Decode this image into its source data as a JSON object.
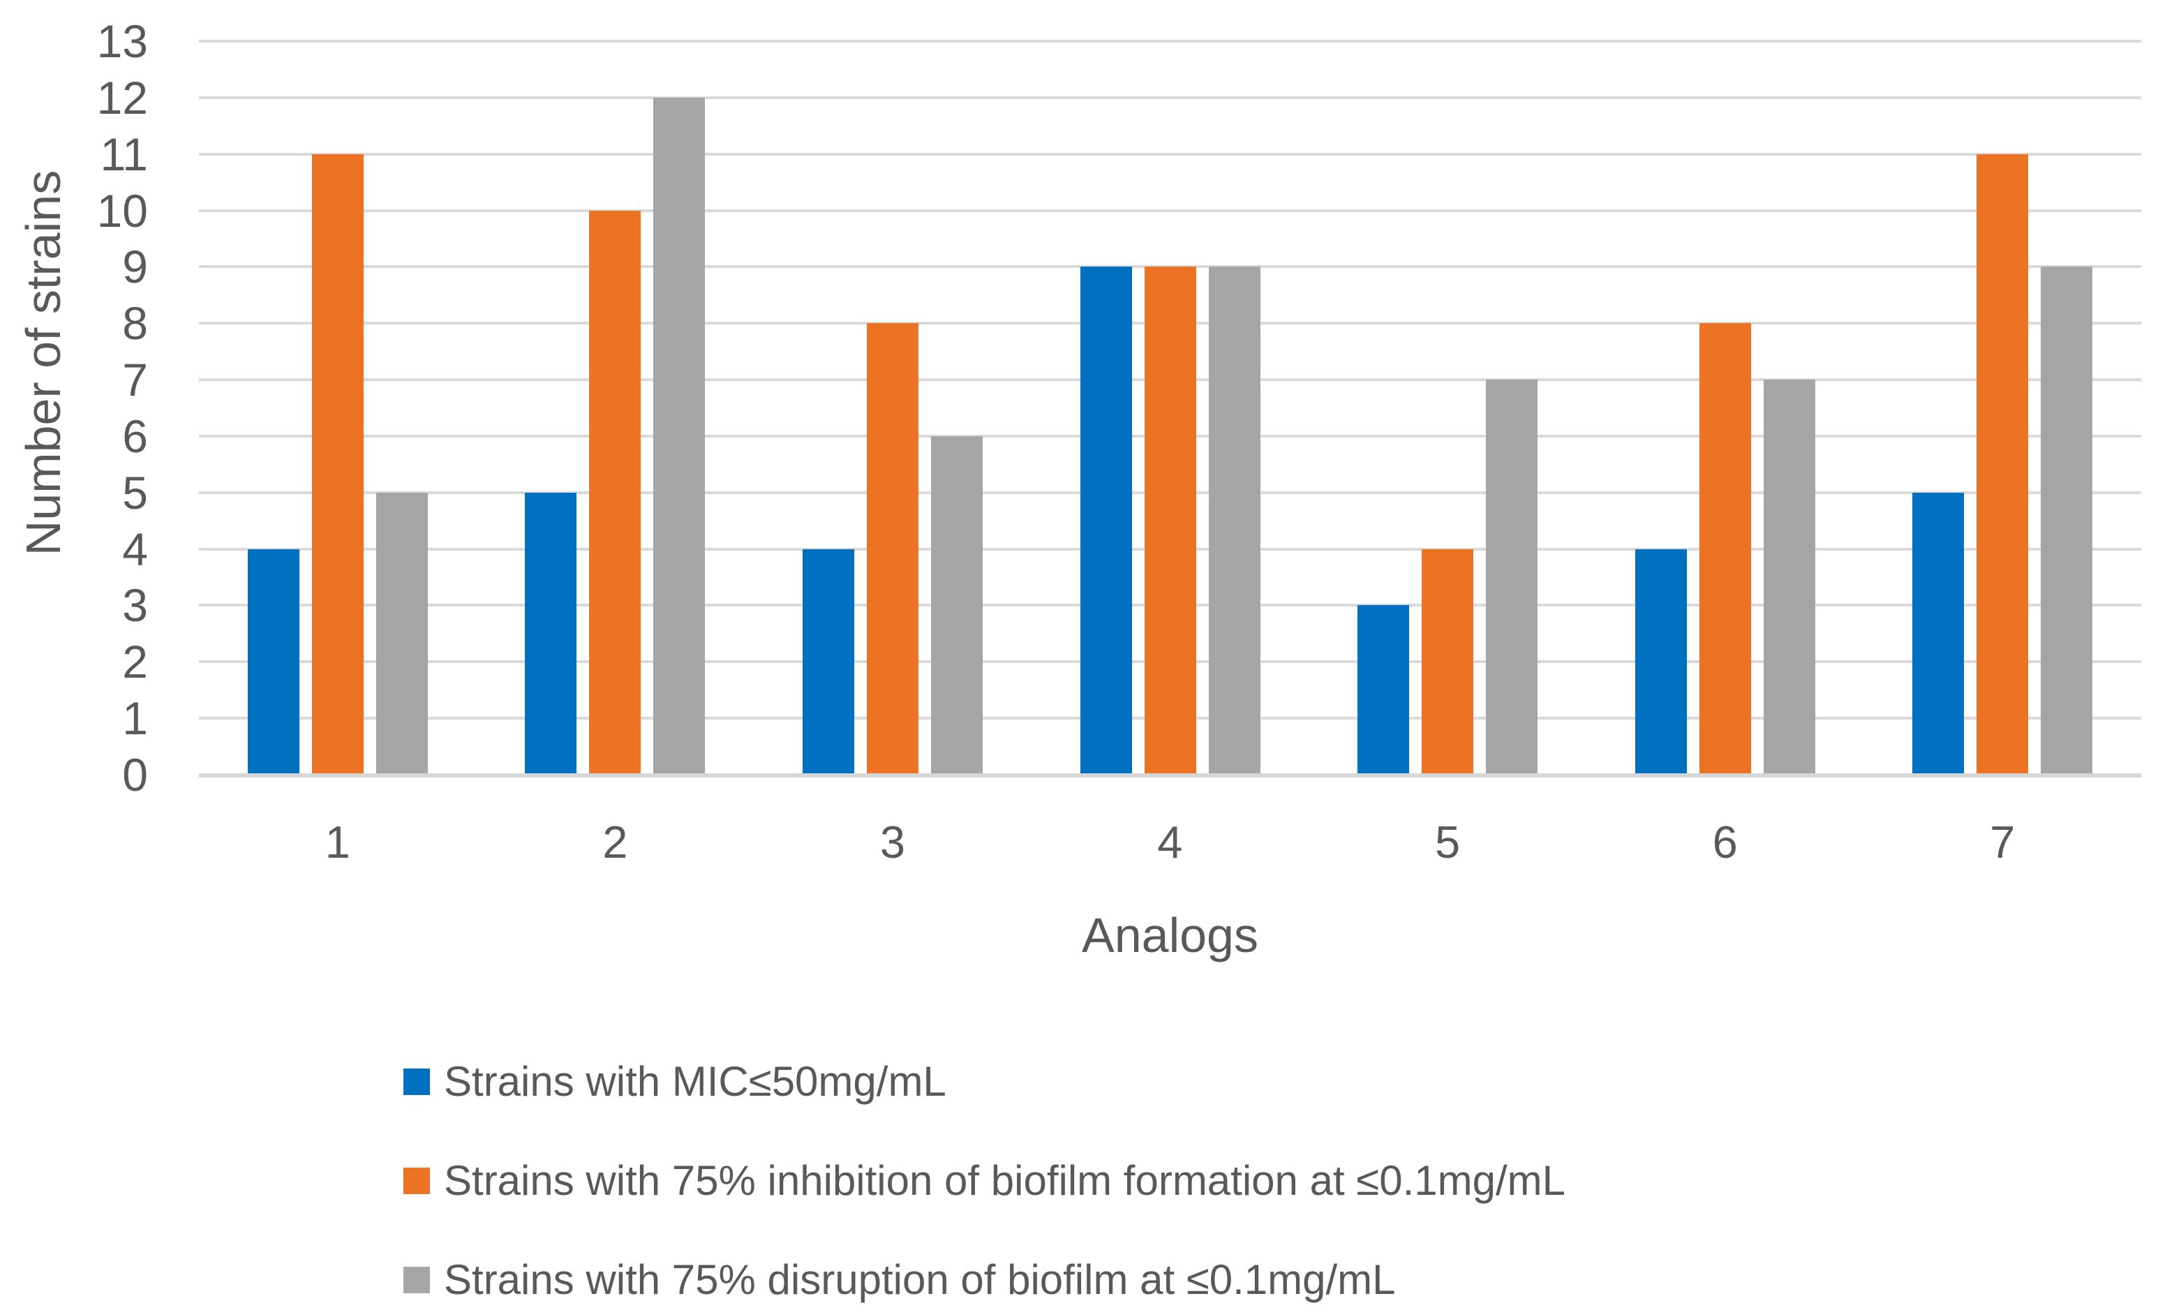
{
  "chart_data": {
    "type": "bar",
    "title": "",
    "xlabel": "Analogs",
    "ylabel": "Number of strains",
    "categories": [
      "1",
      "2",
      "3",
      "4",
      "5",
      "6",
      "7"
    ],
    "series": [
      {
        "name": "Strains with MIC≤50mg/mL",
        "color": "#0070C0",
        "values": [
          4,
          5,
          4,
          9,
          3,
          4,
          5
        ]
      },
      {
        "name": "Strains with 75% inhibition of biofilm formation at ≤0.1mg/mL",
        "color": "#EC7323",
        "values": [
          11,
          10,
          8,
          9,
          4,
          8,
          11
        ]
      },
      {
        "name": "Strains with 75% disruption of biofilm at ≤0.1mg/mL",
        "color": "#A5A5A5",
        "values": [
          5,
          12,
          6,
          9,
          7,
          7,
          9
        ]
      }
    ],
    "ylim": [
      0,
      13
    ],
    "ytick_step": 1,
    "y_ticks": [
      "0",
      "1",
      "2",
      "3",
      "4",
      "5",
      "6",
      "7",
      "8",
      "9",
      "10",
      "11",
      "12",
      "13"
    ],
    "grid": true,
    "legend_position": "bottom-left",
    "colors": {
      "gridline": "#D9D9D9",
      "axis_line": "#D6D6D6",
      "text": "#595959",
      "background": "#FFFFFF"
    }
  }
}
